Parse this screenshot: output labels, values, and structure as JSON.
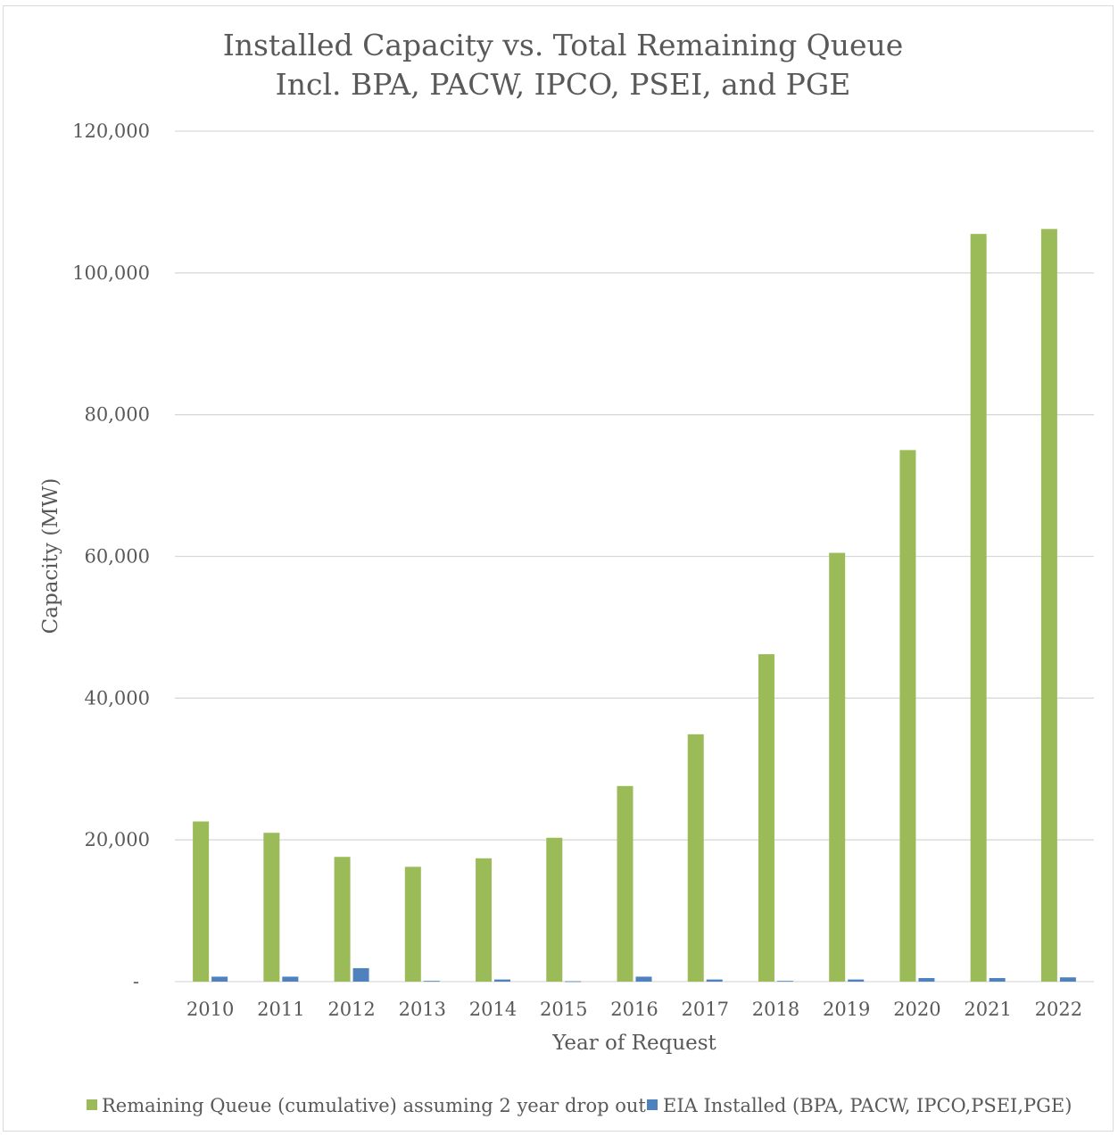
{
  "chart_data": {
    "type": "bar",
    "title": [
      "Installed Capacity vs. Total Remaining Queue",
      "Incl. BPA, PACW, IPCO, PSEI, and PGE"
    ],
    "xlabel": "Year of Request",
    "ylabel": "Capacity (MW)",
    "categories": [
      "2010",
      "2011",
      "2012",
      "2013",
      "2014",
      "2015",
      "2016",
      "2017",
      "2018",
      "2019",
      "2020",
      "2021",
      "2022"
    ],
    "ylim": [
      0,
      120000
    ],
    "yticks": [
      0,
      20000,
      40000,
      60000,
      80000,
      100000,
      120000
    ],
    "ytick_labels": [
      "-",
      "20,000",
      "40,000",
      "60,000",
      "80,000",
      "100,000",
      "120,000"
    ],
    "grid": true,
    "legend_position": "bottom",
    "series": [
      {
        "name": "Remaining Queue (cumulative) assuming 2 year drop out",
        "color": "#9bbb59",
        "values": [
          22600,
          21000,
          17600,
          16200,
          17400,
          20300,
          27600,
          34900,
          46200,
          60500,
          75000,
          105500,
          106200
        ]
      },
      {
        "name": "EIA Installed (BPA, PACW, IPCO,PSEI,PGE)",
        "color": "#4f81bd",
        "values": [
          700,
          700,
          1900,
          100,
          300,
          50,
          700,
          300,
          100,
          300,
          500,
          500,
          600
        ]
      }
    ]
  }
}
